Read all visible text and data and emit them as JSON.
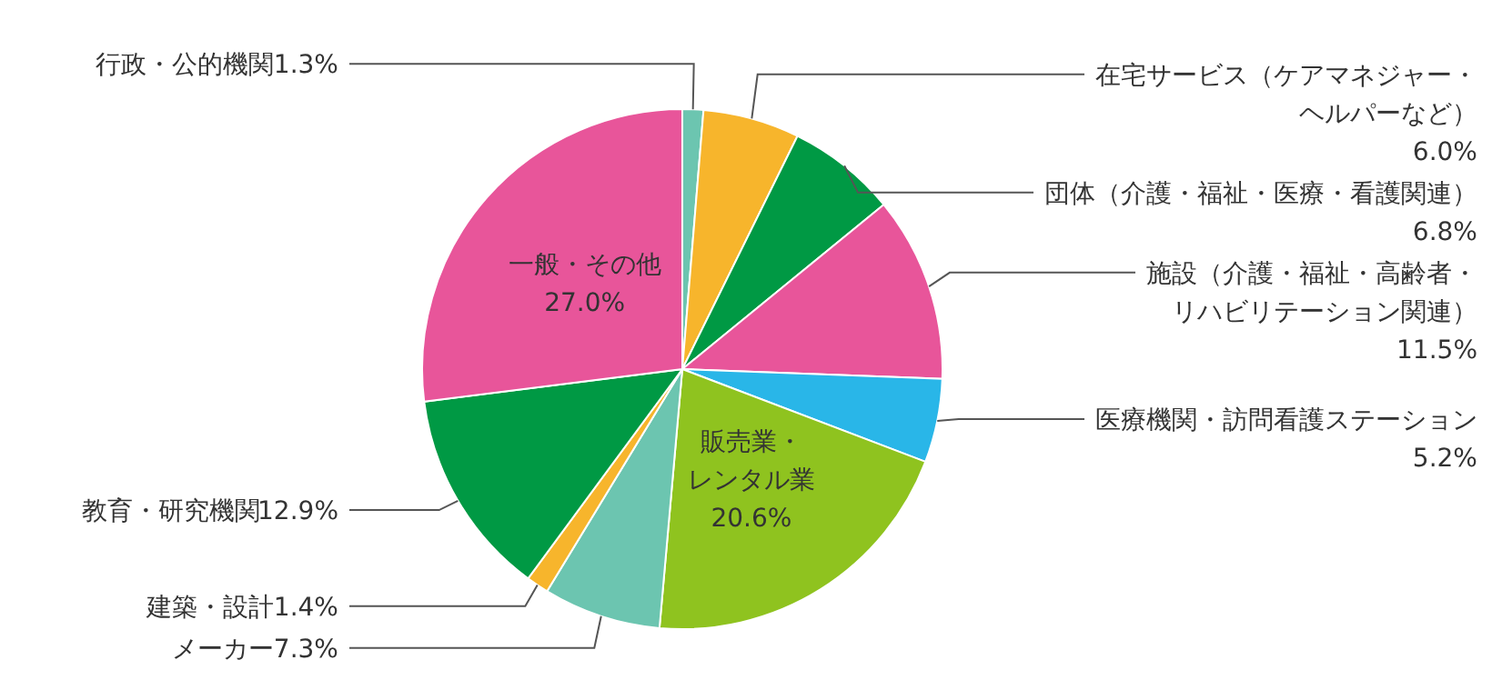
{
  "chart_data": {
    "type": "pie",
    "categories": [
      "行政・公的機関",
      "在宅サービス（ケアマネジャー・ヘルパーなど）",
      "団体（介護・福祉・医療・看護関連）",
      "施設（介護・福祉・高齢者・リハビリテーション関連）",
      "医療機関・訪問看護ステーション",
      "販売業・レンタル業",
      "メーカー",
      "建築・設計",
      "教育・研究機関",
      "一般・その他"
    ],
    "values": [
      1.3,
      6.0,
      6.8,
      11.5,
      5.2,
      20.6,
      7.3,
      1.4,
      12.9,
      27.0
    ],
    "value_labels": [
      "1.3%",
      "6.0%",
      "6.8%",
      "11.5%",
      "5.2%",
      "20.6%",
      "7.3%",
      "1.4%",
      "12.9%",
      "27.0%"
    ],
    "colors": [
      "#6cc5b0",
      "#f7b52c",
      "#009944",
      "#e8559a",
      "#29b6e8",
      "#8fc31f",
      "#6cc5b0",
      "#f7b52c",
      "#009944",
      "#e8559a"
    ]
  }
}
